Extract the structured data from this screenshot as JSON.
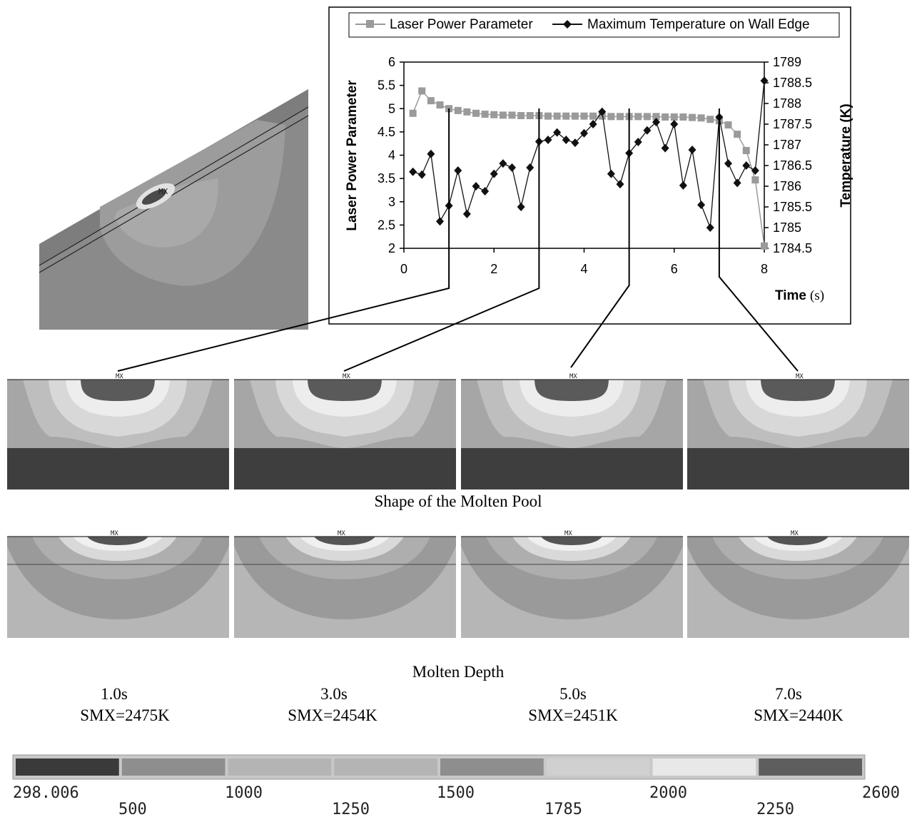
{
  "chart_data": {
    "type": "line",
    "legend": [
      "Laser Power Parameter",
      "Maximum Temperature on Wall Edge"
    ],
    "legend_position": "top",
    "x_ticks": [
      "0",
      "2",
      "4",
      "6",
      "8"
    ],
    "y_left_ticks": [
      "2",
      "2.5",
      "3",
      "3.5",
      "4",
      "4.5",
      "5",
      "5.5",
      "6"
    ],
    "y_right_ticks": [
      "1784.5",
      "1785",
      "1785.5",
      "1786",
      "1786.5",
      "1787",
      "1787.5",
      "1788",
      "1788.5",
      "1789"
    ],
    "ylabel_left": "Laser Power Parameter",
    "ylabel_right": "Temperature (K)",
    "xlabel_main": "Time",
    "xlabel_unit": "(s)",
    "xlim": [
      0,
      8
    ],
    "ylim_left": [
      2,
      6
    ],
    "ylim_right": [
      1784.5,
      1789
    ],
    "grid": false,
    "series": [
      {
        "name": "Laser Power Parameter",
        "axis": "left",
        "color": "#9a9a9a",
        "marker": "square",
        "x": [
          0.2,
          0.4,
          0.6,
          0.8,
          1.0,
          1.2,
          1.4,
          1.6,
          1.8,
          2.0,
          2.2,
          2.4,
          2.6,
          2.8,
          3.0,
          3.2,
          3.4,
          3.6,
          3.8,
          4.0,
          4.2,
          4.4,
          4.6,
          4.8,
          5.0,
          5.2,
          5.4,
          5.6,
          5.8,
          6.0,
          6.2,
          6.4,
          6.6,
          6.8,
          7.0,
          7.2,
          7.4,
          7.6,
          7.8,
          8.0
        ],
        "values": [
          4.9,
          5.38,
          5.17,
          5.08,
          5.0,
          4.96,
          4.93,
          4.9,
          4.88,
          4.87,
          4.86,
          4.86,
          4.85,
          4.85,
          4.85,
          4.84,
          4.84,
          4.84,
          4.84,
          4.84,
          4.84,
          4.84,
          4.83,
          4.83,
          4.83,
          4.83,
          4.83,
          4.83,
          4.82,
          4.82,
          4.82,
          4.81,
          4.8,
          4.77,
          4.74,
          4.65,
          4.45,
          4.1,
          3.47,
          2.05
        ]
      },
      {
        "name": "Maximum Temperature on Wall Edge",
        "axis": "right",
        "color": "#111111",
        "marker": "diamond",
        "x": [
          0.2,
          0.4,
          0.6,
          0.8,
          1.0,
          1.2,
          1.4,
          1.6,
          1.8,
          2.0,
          2.2,
          2.4,
          2.6,
          2.8,
          3.0,
          3.2,
          3.4,
          3.6,
          3.8,
          4.0,
          4.2,
          4.4,
          4.6,
          4.8,
          5.0,
          5.2,
          5.4,
          5.6,
          5.8,
          6.0,
          6.2,
          6.4,
          6.6,
          6.8,
          7.0,
          7.2,
          7.4,
          7.6,
          7.8,
          8.0
        ],
        "values": [
          1786.35,
          1786.28,
          1786.78,
          1785.15,
          1785.53,
          1786.38,
          1785.33,
          1786.0,
          1785.88,
          1786.3,
          1786.55,
          1786.45,
          1785.5,
          1786.45,
          1787.08,
          1787.12,
          1787.3,
          1787.12,
          1787.05,
          1787.28,
          1787.5,
          1787.8,
          1786.3,
          1786.05,
          1786.8,
          1787.07,
          1787.35,
          1787.55,
          1786.92,
          1787.5,
          1786.02,
          1786.88,
          1785.55,
          1785.0,
          1787.67,
          1786.55,
          1786.08,
          1786.5,
          1786.38,
          1788.55
        ]
      }
    ]
  },
  "callout_times": [
    1.0,
    3.0,
    5.0,
    7.0
  ],
  "captions": {
    "pool_shape": "Shape of the Molten Pool",
    "molten_depth": "Molten Depth"
  },
  "panel_marker": "MX",
  "snapshots": [
    {
      "time": "1.0s",
      "smx": "SMX=2475K"
    },
    {
      "time": "3.0s",
      "smx": "SMX=2454K"
    },
    {
      "time": "5.0s",
      "smx": "SMX=2451K"
    },
    {
      "time": "7.0s",
      "smx": "SMX=2440K"
    }
  ],
  "contour_scale": {
    "labels_top": [
      "298.006",
      "1000",
      "1500",
      "2000",
      "2600"
    ],
    "labels_bottom": [
      "500",
      "1250",
      "1785",
      "2250"
    ],
    "colors": [
      "#3a3a3a",
      "#8e8e8e",
      "#b4b4b4",
      "#b4b4b4",
      "#8e8e8e",
      "#d0d0d0",
      "#e8e8e8",
      "#5e5e5e"
    ]
  }
}
